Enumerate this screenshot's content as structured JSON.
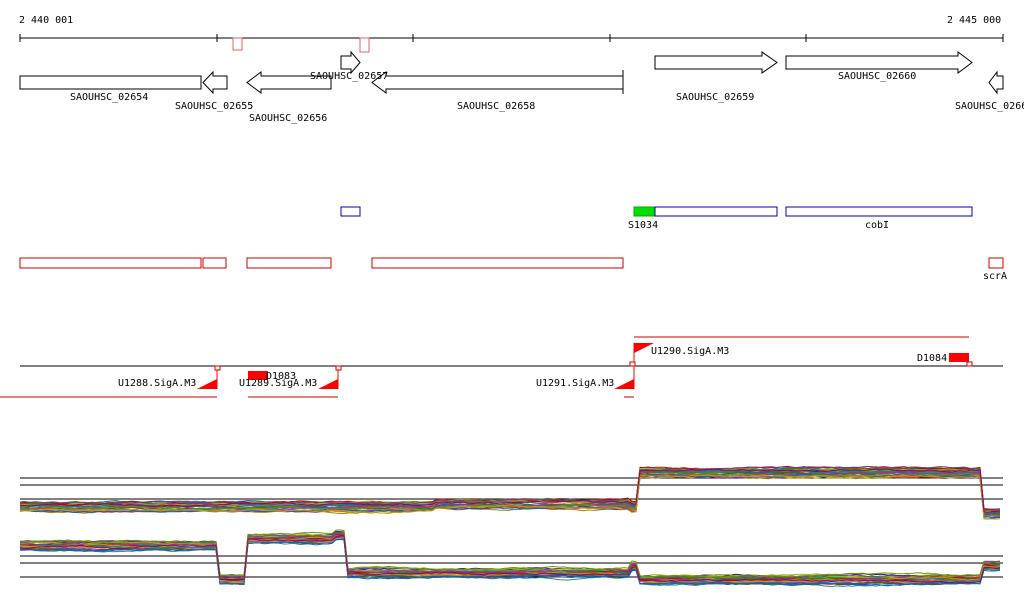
{
  "ruler": {
    "start_label": "2 440 001",
    "end_label": "2 445 000"
  },
  "genes": {
    "g02654": "SAOUHSC_02654",
    "g02655": "SAOUHSC_02655",
    "g02656": "SAOUHSC_02656",
    "g02657": "SAOUHSC_02657",
    "g02658": "SAOUHSC_02658",
    "g02659": "SAOUHSC_02659",
    "g02660": "SAOUHSC_02660",
    "g02661": "SAOUHSC_0266"
  },
  "features": {
    "s1034": "S1034",
    "cobi": "cobI",
    "scra": "scrA"
  },
  "transcripts": {
    "u1288": "U1288.SigA.M3",
    "u1289": "U1289.SigA.M3",
    "u1290": "U1290.SigA.M3",
    "u1291": "U1291.SigA.M3",
    "d1083": "D1083",
    "d1084": "D1084"
  },
  "colors": {
    "gene_outline": "#000000",
    "feature_blue": "#0000aa",
    "feature_red": "#cc0000",
    "feature_green": "#00dd00",
    "tss_red": "#ff0000"
  },
  "expression_panels": [
    {
      "name": "upper",
      "series_count": 30,
      "profile_steps": [
        [
          0,
          0.0
        ],
        [
          0.42,
          0.08
        ],
        [
          0.62,
          0.0
        ],
        [
          0.63,
          1.0
        ],
        [
          0.97,
          1.0
        ],
        [
          0.98,
          -0.2
        ],
        [
          1.0,
          -0.1
        ]
      ]
    },
    {
      "name": "lower",
      "series_count": 30,
      "profile_steps": [
        [
          0,
          1.0
        ],
        [
          0.19,
          1.0
        ],
        [
          0.2,
          0.0
        ],
        [
          0.23,
          1.2
        ],
        [
          0.32,
          1.3
        ],
        [
          0.33,
          0.2
        ],
        [
          0.62,
          0.4
        ],
        [
          0.63,
          0.0
        ],
        [
          0.97,
          0.0
        ],
        [
          0.98,
          0.4
        ]
      ]
    }
  ]
}
